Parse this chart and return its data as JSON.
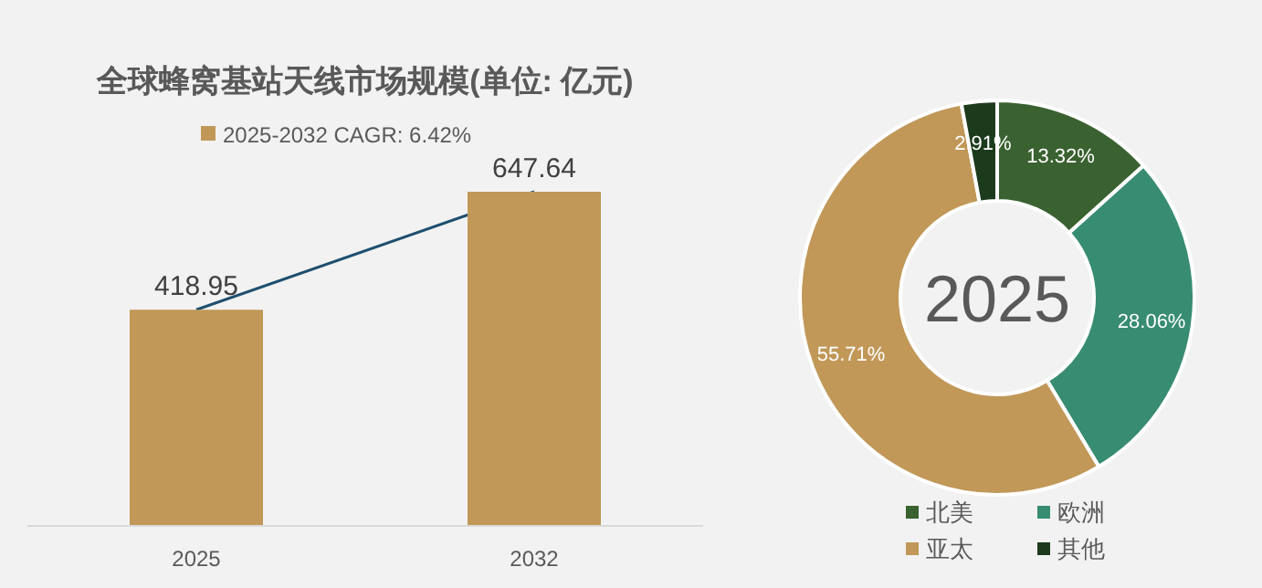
{
  "chart_data": [
    {
      "type": "bar",
      "title": "全球蜂窝基站天线市场规模(单位: 亿元)",
      "categories": [
        "2025",
        "2032"
      ],
      "series": [
        {
          "name": "2025-2032 CAGR: 6.42%",
          "color": "#c19858",
          "values": [
            418.95,
            647.64
          ],
          "value_labels": [
            "418.95",
            "647.64"
          ]
        },
        {
          "type": "line",
          "color": "#1f4e6e",
          "values": [
            418.95,
            647.64
          ]
        }
      ],
      "legend": "top"
    },
    {
      "type": "donut",
      "categories": [
        "北美",
        "欧洲",
        "亚太",
        "其他"
      ],
      "values": [
        13.32,
        28.06,
        55.71,
        2.91
      ],
      "value_labels": [
        "13.32%",
        "28.06%",
        "55.71%",
        "2.91%"
      ],
      "colors": [
        "#3a6130",
        "#378c72",
        "#c19858",
        "#1c3a1c"
      ],
      "legend": "bottom",
      "annotations": [
        "2025"
      ]
    }
  ]
}
